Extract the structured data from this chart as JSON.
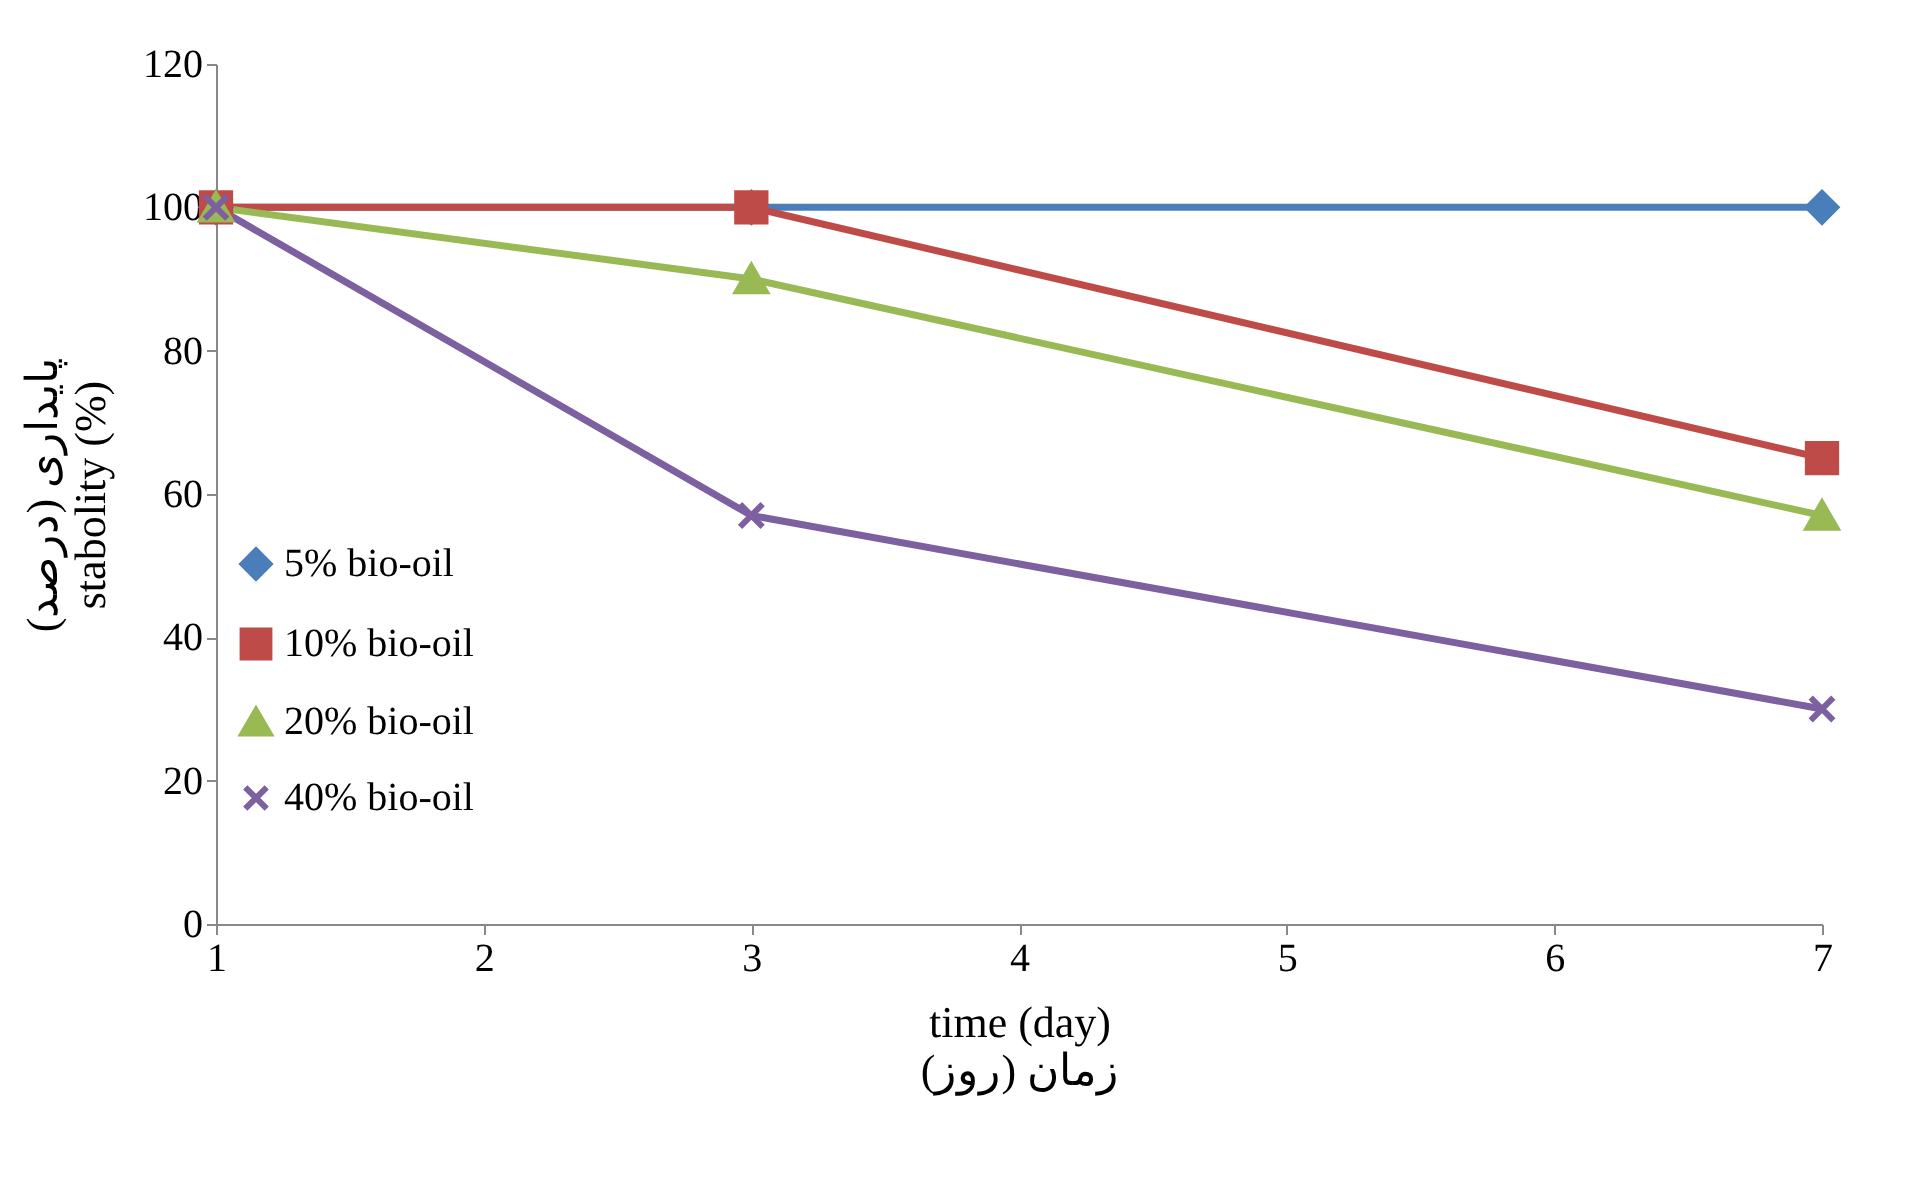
{
  "chart_data": {
    "type": "line",
    "xlabel": "time (day)",
    "ylabel": "stabolity (%)",
    "annotations": [
      "زمان (روز)",
      "پایداری (درصد)"
    ],
    "x": [
      1,
      3,
      7
    ],
    "xlim": [
      1,
      7
    ],
    "xticks": [
      1,
      2,
      3,
      4,
      5,
      6,
      7
    ],
    "ylim": [
      0,
      120
    ],
    "yticks": [
      0,
      20,
      40,
      60,
      80,
      100,
      120
    ],
    "grid": false,
    "legend": "left",
    "line_style": "solid",
    "series": [
      {
        "name": "5% bio-oil",
        "color": "#4a7ebb",
        "marker": "diamond",
        "values": [
          100,
          100,
          100
        ]
      },
      {
        "name": "10% bio-oil",
        "color": "#be4b48",
        "marker": "square",
        "values": [
          100,
          100,
          65
        ]
      },
      {
        "name": "20% bio-oil",
        "color": "#98b954",
        "marker": "triangle",
        "values": [
          100,
          90,
          57
        ]
      },
      {
        "name": "40% bio-oil",
        "color": "#7d60a0",
        "marker": "cross",
        "values": [
          100,
          57,
          30
        ]
      }
    ]
  }
}
